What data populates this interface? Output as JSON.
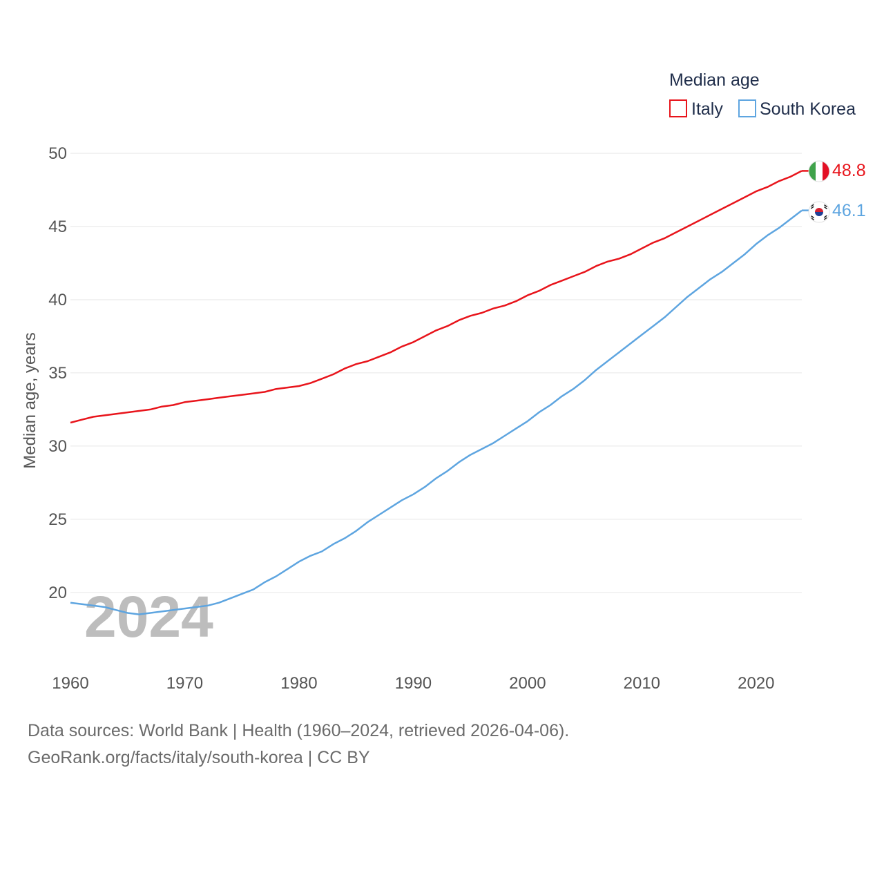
{
  "chart_data": {
    "type": "line",
    "title": "",
    "xlabel": "",
    "ylabel": "Median age, years",
    "xlim": [
      1960,
      2024
    ],
    "ylim": [
      16.5,
      50
    ],
    "yticks": [
      20,
      25,
      30,
      35,
      40,
      45,
      50
    ],
    "xticks": [
      1960,
      1970,
      1980,
      1990,
      2000,
      2010,
      2020
    ],
    "grid": true,
    "legend": {
      "title": "Median age",
      "position": "top-right"
    },
    "watermark_year": "2024",
    "x": [
      1960,
      1961,
      1962,
      1963,
      1964,
      1965,
      1966,
      1967,
      1968,
      1969,
      1970,
      1971,
      1972,
      1973,
      1974,
      1975,
      1976,
      1977,
      1978,
      1979,
      1980,
      1981,
      1982,
      1983,
      1984,
      1985,
      1986,
      1987,
      1988,
      1989,
      1990,
      1991,
      1992,
      1993,
      1994,
      1995,
      1996,
      1997,
      1998,
      1999,
      2000,
      2001,
      2002,
      2003,
      2004,
      2005,
      2006,
      2007,
      2008,
      2009,
      2010,
      2011,
      2012,
      2013,
      2014,
      2015,
      2016,
      2017,
      2018,
      2019,
      2020,
      2021,
      2022,
      2023,
      2024
    ],
    "series": [
      {
        "name": "Italy",
        "color": "#e8141b",
        "flag": "italy-flag-icon",
        "end_label": "48.8",
        "values": [
          31.6,
          31.8,
          32.0,
          32.1,
          32.2,
          32.3,
          32.4,
          32.5,
          32.7,
          32.8,
          33.0,
          33.1,
          33.2,
          33.3,
          33.4,
          33.5,
          33.6,
          33.7,
          33.9,
          34.0,
          34.1,
          34.3,
          34.6,
          34.9,
          35.3,
          35.6,
          35.8,
          36.1,
          36.4,
          36.8,
          37.1,
          37.5,
          37.9,
          38.2,
          38.6,
          38.9,
          39.1,
          39.4,
          39.6,
          39.9,
          40.3,
          40.6,
          41.0,
          41.3,
          41.6,
          41.9,
          42.3,
          42.6,
          42.8,
          43.1,
          43.5,
          43.9,
          44.2,
          44.6,
          45.0,
          45.4,
          45.8,
          46.2,
          46.6,
          47.0,
          47.4,
          47.7,
          48.1,
          48.4,
          48.8
        ]
      },
      {
        "name": "South Korea",
        "color": "#5ea5e0",
        "flag": "south-korea-flag-icon",
        "end_label": "46.1",
        "values": [
          19.3,
          19.2,
          19.1,
          19.0,
          18.8,
          18.6,
          18.5,
          18.6,
          18.7,
          18.8,
          18.9,
          19.0,
          19.1,
          19.3,
          19.6,
          19.9,
          20.2,
          20.7,
          21.1,
          21.6,
          22.1,
          22.5,
          22.8,
          23.3,
          23.7,
          24.2,
          24.8,
          25.3,
          25.8,
          26.3,
          26.7,
          27.2,
          27.8,
          28.3,
          28.9,
          29.4,
          29.8,
          30.2,
          30.7,
          31.2,
          31.7,
          32.3,
          32.8,
          33.4,
          33.9,
          34.5,
          35.2,
          35.8,
          36.4,
          37.0,
          37.6,
          38.2,
          38.8,
          39.5,
          40.2,
          40.8,
          41.4,
          41.9,
          42.5,
          43.1,
          43.8,
          44.4,
          44.9,
          45.5,
          46.1
        ]
      }
    ]
  },
  "footer": {
    "source_line1": "Data sources: World Bank | Health (1960–2024, retrieved 2026-04-06).",
    "source_line2": "GeoRank.org/facts/italy/south-korea | CC BY"
  }
}
